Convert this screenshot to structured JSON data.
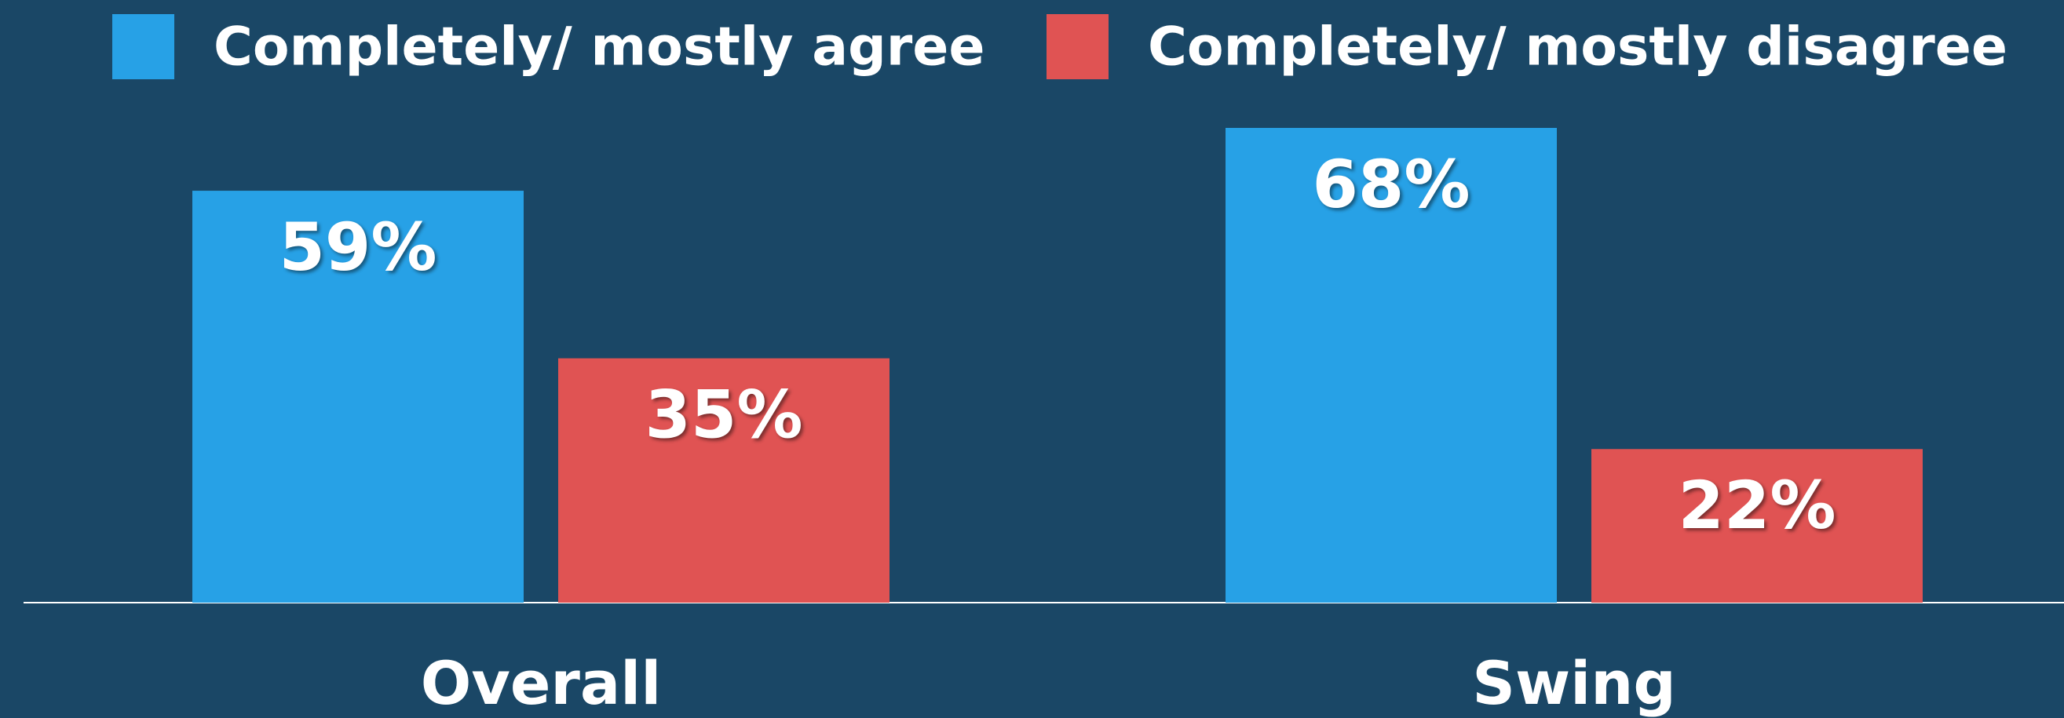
{
  "chart_data": {
    "type": "bar",
    "categories": [
      "Overall",
      "Swing"
    ],
    "series": [
      {
        "name": "Completely/ mostly agree",
        "color": "#27a1e6",
        "values": [
          59,
          68
        ],
        "value_labels": [
          "59%",
          "68%"
        ]
      },
      {
        "name": "Completely/ mostly disagree",
        "color": "#e05353",
        "values": [
          35,
          22
        ],
        "value_labels": [
          "35%",
          "22%"
        ]
      }
    ],
    "legend": "top"
  }
}
